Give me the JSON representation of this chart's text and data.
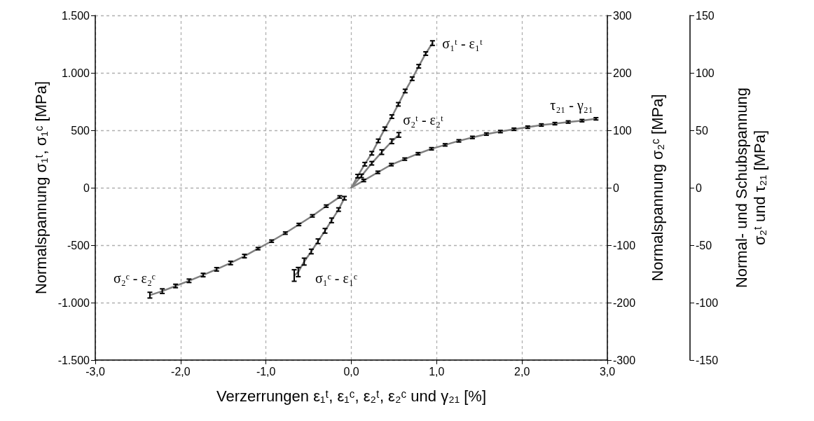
{
  "chart_data": {
    "type": "line",
    "xlabel": "Verzerrungen ε₁ᵗ, ε₁ᶜ, ε₂ᵗ, ε₂ᶜ und γ₂₁ [%]",
    "ylabel": "Normalspannung σ₁ᵗ, σ₁ᶜ [MPa]",
    "y2label": "Normalspannung σ₂ᶜ [MPa]",
    "y3label": "Normal- und Schubspannung\nσ₂ᵗ und τ₂₁ [MPa]",
    "xlim": [
      -3,
      3
    ],
    "xticks": [
      {
        "value": -3,
        "label": "-3,0"
      },
      {
        "value": -2,
        "label": "-2,0"
      },
      {
        "value": -1,
        "label": "-1,0"
      },
      {
        "value": 0,
        "label": "0,0"
      },
      {
        "value": 1,
        "label": "1,0"
      },
      {
        "value": 2,
        "label": "2,0"
      },
      {
        "value": 3,
        "label": "3,0"
      }
    ],
    "ylim": [
      -1500,
      1500
    ],
    "yticks": [
      {
        "value": -1500,
        "label": "-1.500"
      },
      {
        "value": -1000,
        "label": "-1.000"
      },
      -500,
      0,
      500,
      {
        "value": 1000,
        "label": "1.000"
      },
      {
        "value": 1500,
        "label": "1.500"
      }
    ],
    "y2lim": [
      -300,
      300
    ],
    "y2ticks": [
      -300,
      -200,
      -100,
      0,
      100,
      200,
      300
    ],
    "y3lim": [
      -150,
      150
    ],
    "y3ticks": [
      -150,
      -100,
      -50,
      0,
      50,
      100,
      150
    ],
    "grid": true,
    "legend": false,
    "marker": "none",
    "line_style": "solid",
    "series": [
      {
        "name": "σ₁ᵗ - ε₁ᵗ",
        "color": "#808080",
        "x": [
          0,
          0.075,
          0.158,
          0.24,
          0.316,
          0.393,
          0.475,
          0.551,
          0.631,
          0.713,
          0.79,
          0.872,
          0.951
        ],
        "values": [
          0,
          101,
          205,
          300,
          408,
          513,
          619,
          726,
          842,
          949,
          1057,
          1168,
          1259
        ],
        "errors": [
          null,
          15,
          15,
          15,
          15,
          15,
          15,
          15,
          15,
          15,
          15,
          15,
          20
        ]
      },
      {
        "name": "σ₁ᶜ - ε₁ᶜ",
        "color": "#808080",
        "x": [
          -0.081,
          -0.149,
          -0.231,
          -0.308,
          -0.39,
          -0.469,
          -0.552,
          -0.622,
          -0.669
        ],
        "values": [
          -91,
          -190,
          -284,
          -375,
          -466,
          -555,
          -643,
          -734,
          -764
        ],
        "errors": [
          15,
          15,
          20,
          20,
          20,
          20,
          30,
          40,
          50
        ]
      },
      {
        "name": "σ₂ᵗ - ε₂ᵗ",
        "color": "#808080",
        "axis": "y3",
        "x": [
          0,
          0.119,
          0.24,
          0.357,
          0.475,
          0.557
        ],
        "values": [
          0,
          10.3,
          21.3,
          31,
          40.4,
          46
        ],
        "errors": [
          null,
          1.5,
          1.5,
          2,
          2,
          2
        ]
      },
      {
        "name": "τ₂₁ - γ₂₁",
        "color": "#808080",
        "axis": "y3",
        "x": [
          0,
          0.146,
          0.311,
          0.469,
          0.626,
          0.782,
          0.94,
          1.099,
          1.26,
          1.419,
          1.583,
          1.747,
          1.906,
          2.067,
          2.227,
          2.385,
          2.541,
          2.703,
          2.867
        ],
        "values": [
          0,
          6.3,
          13.4,
          20.1,
          24.9,
          29.6,
          33.9,
          37.3,
          40.8,
          43.8,
          46.7,
          48.9,
          50.9,
          52.7,
          54.6,
          55.8,
          57.2,
          58.4,
          60
        ],
        "errors": [
          null,
          1,
          1,
          1,
          1,
          1,
          1,
          1,
          1,
          1,
          1,
          1,
          1,
          1,
          1,
          1,
          1,
          1,
          1
        ]
      },
      {
        "name": "σ₂ᶜ - ε₂ᶜ",
        "color": "#808080",
        "axis": "y2",
        "x": [
          -0.135,
          -0.294,
          -0.456,
          -0.614,
          -0.773,
          -0.934,
          -1.093,
          -1.252,
          -1.414,
          -1.578,
          -1.736,
          -1.901,
          -2.059,
          -2.215,
          -2.36
        ],
        "values": [
          -16,
          -32,
          -49,
          -64,
          -79,
          -93,
          -106,
          -119,
          -131,
          -142,
          -152,
          -162,
          -171,
          -180,
          -187
        ],
        "errors": [
          2,
          2,
          2,
          2,
          2,
          2,
          2,
          3,
          3,
          3,
          3,
          3,
          3,
          4,
          5
        ]
      }
    ]
  }
}
